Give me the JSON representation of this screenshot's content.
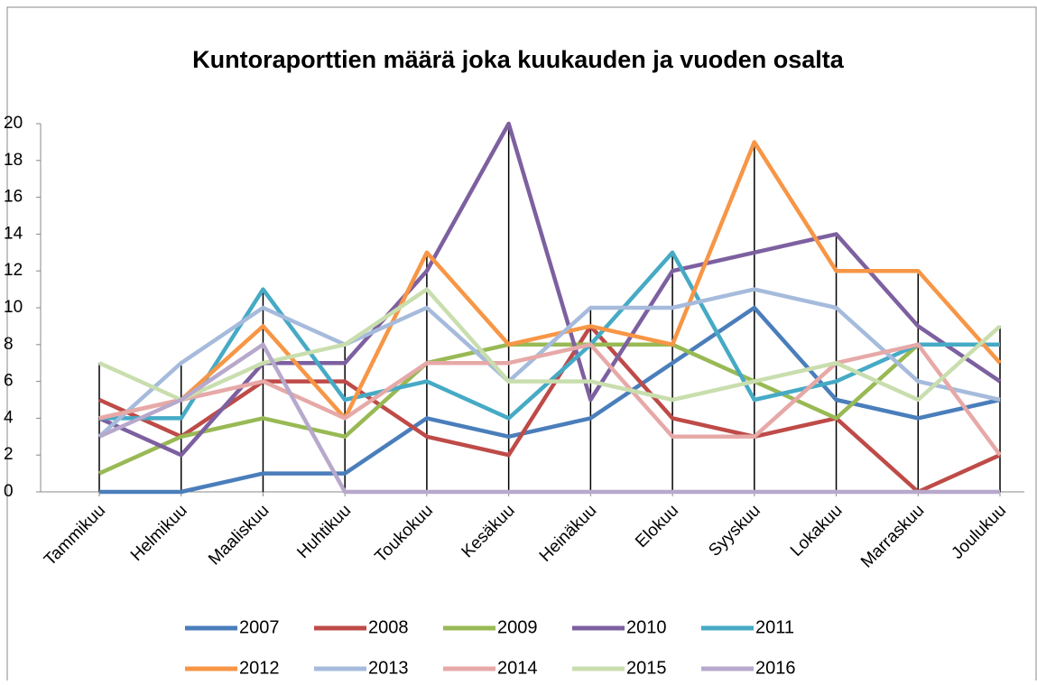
{
  "chart_data": {
    "type": "line",
    "title": "Kuntoraporttien määrä joka kuukauden ja vuoden osalta",
    "categories": [
      "Tammikuu",
      "Helmikuu",
      "Maaliskuu",
      "Huhtikuu",
      "Toukokuu",
      "Kesäkuu",
      "Heinäkuu",
      "Elokuu",
      "Syyskuu",
      "Lokakuu",
      "Marraskuu",
      "Joulukuu"
    ],
    "ylim": [
      0,
      20
    ],
    "yticks": [
      0,
      2,
      4,
      6,
      8,
      10,
      12,
      14,
      16,
      18,
      20
    ],
    "drop_lines": true,
    "series": [
      {
        "name": "2007",
        "color": "#4a7ebb",
        "values": [
          0,
          0,
          1,
          1,
          4,
          3,
          4,
          7,
          10,
          5,
          4,
          5
        ]
      },
      {
        "name": "2008",
        "color": "#be4b48",
        "values": [
          5,
          3,
          6,
          6,
          3,
          2,
          9,
          4,
          3,
          4,
          0,
          2
        ]
      },
      {
        "name": "2009",
        "color": "#98b954",
        "values": [
          1,
          3,
          4,
          3,
          7,
          8,
          8,
          8,
          6,
          4,
          8,
          8
        ]
      },
      {
        "name": "2010",
        "color": "#7d60a0",
        "values": [
          4,
          2,
          7,
          7,
          12,
          20,
          5,
          12,
          13,
          14,
          9,
          6
        ]
      },
      {
        "name": "2011",
        "color": "#46aac5",
        "values": [
          4,
          4,
          11,
          5,
          6,
          4,
          8,
          13,
          5,
          6,
          8,
          8
        ]
      },
      {
        "name": "2012",
        "color": "#f79646",
        "values": [
          4,
          5,
          9,
          4,
          13,
          8,
          9,
          8,
          19,
          12,
          12,
          7
        ]
      },
      {
        "name": "2013",
        "color": "#a6bbdc",
        "values": [
          3,
          7,
          10,
          8,
          10,
          6,
          10,
          10,
          11,
          10,
          6,
          5
        ]
      },
      {
        "name": "2014",
        "color": "#e6a9a7",
        "values": [
          4,
          5,
          6,
          4,
          7,
          7,
          8,
          3,
          3,
          7,
          8,
          2
        ]
      },
      {
        "name": "2015",
        "color": "#c9deae",
        "values": [
          7,
          5,
          7,
          8,
          11,
          6,
          6,
          5,
          6,
          7,
          5,
          9
        ]
      },
      {
        "name": "2016",
        "color": "#b7a8cc",
        "values": [
          3,
          5,
          8,
          0,
          0,
          0,
          0,
          0,
          0,
          0,
          0,
          0
        ]
      }
    ]
  }
}
